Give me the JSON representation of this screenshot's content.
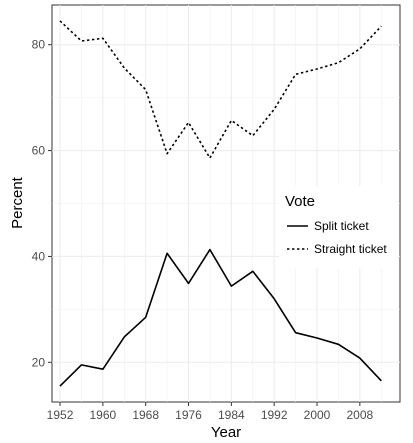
{
  "chart_data": {
    "type": "line",
    "xlabel": "Year",
    "ylabel": "Percent",
    "x_ticks": [
      1952,
      1960,
      1968,
      1976,
      1984,
      1992,
      2000,
      2008
    ],
    "y_ticks": [
      20,
      40,
      60,
      80
    ],
    "xlim": [
      1950.5,
      2015.5
    ],
    "ylim": [
      12.5,
      87.5
    ],
    "grid": true,
    "legend": {
      "title": "Vote",
      "position": "right",
      "entries": [
        "Split ticket",
        "Straight ticket"
      ]
    },
    "x": [
      1952,
      1956,
      1960,
      1964,
      1968,
      1972,
      1976,
      1980,
      1984,
      1988,
      1992,
      1996,
      2000,
      2004,
      2008,
      2012
    ],
    "series": [
      {
        "name": "Split ticket",
        "line_style": "solid",
        "values": [
          15.5,
          19.5,
          18.7,
          24.8,
          28.5,
          40.6,
          34.9,
          41.3,
          34.4,
          37.2,
          32.0,
          25.6,
          24.6,
          23.4,
          20.8,
          16.5
        ]
      },
      {
        "name": "Straight ticket",
        "line_style": "dotted",
        "values": [
          84.5,
          80.7,
          81.2,
          75.6,
          71.5,
          59.4,
          65.3,
          58.6,
          65.7,
          62.8,
          67.8,
          74.4,
          75.4,
          76.6,
          79.2,
          83.5
        ]
      }
    ]
  }
}
